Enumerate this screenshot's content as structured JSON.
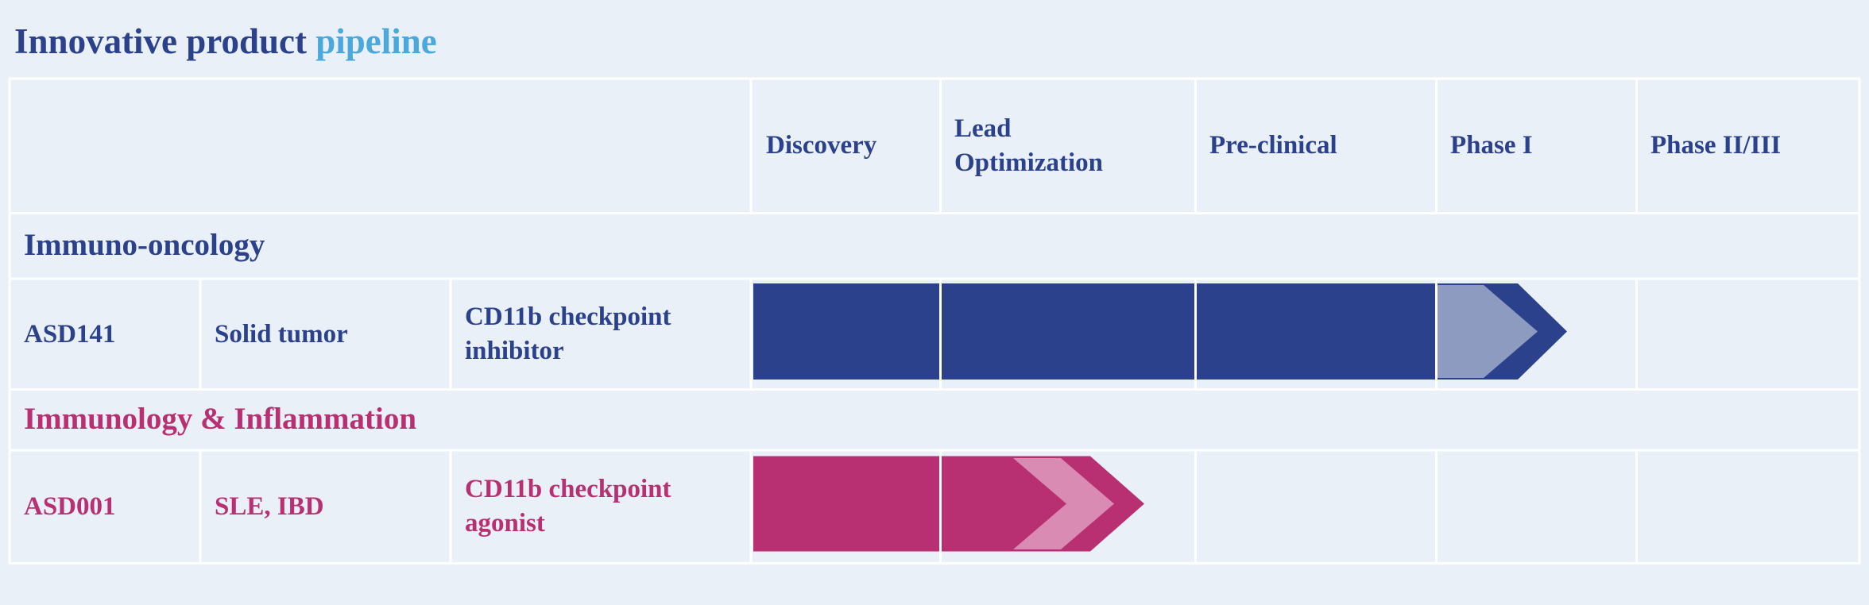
{
  "header": {
    "title": "Innovative product",
    "title_highlight": "pipeline"
  },
  "table": {
    "columns": [
      "Discovery",
      "Lead Optimization",
      "Pre-clinical",
      "Phase I",
      "Phase II/III"
    ],
    "groups": [
      {
        "name": "Immuno-oncology",
        "rows": [
          [
            "ASD141",
            "Solid tumor",
            "CD11b checkpoint inhibitor"
          ]
        ]
      },
      {
        "name": "Immunology & Inflammation",
        "rows": [
          [
            "ASD001",
            "SLE, IBD",
            "CD11b checkpoint agonist"
          ]
        ]
      }
    ]
  }
}
